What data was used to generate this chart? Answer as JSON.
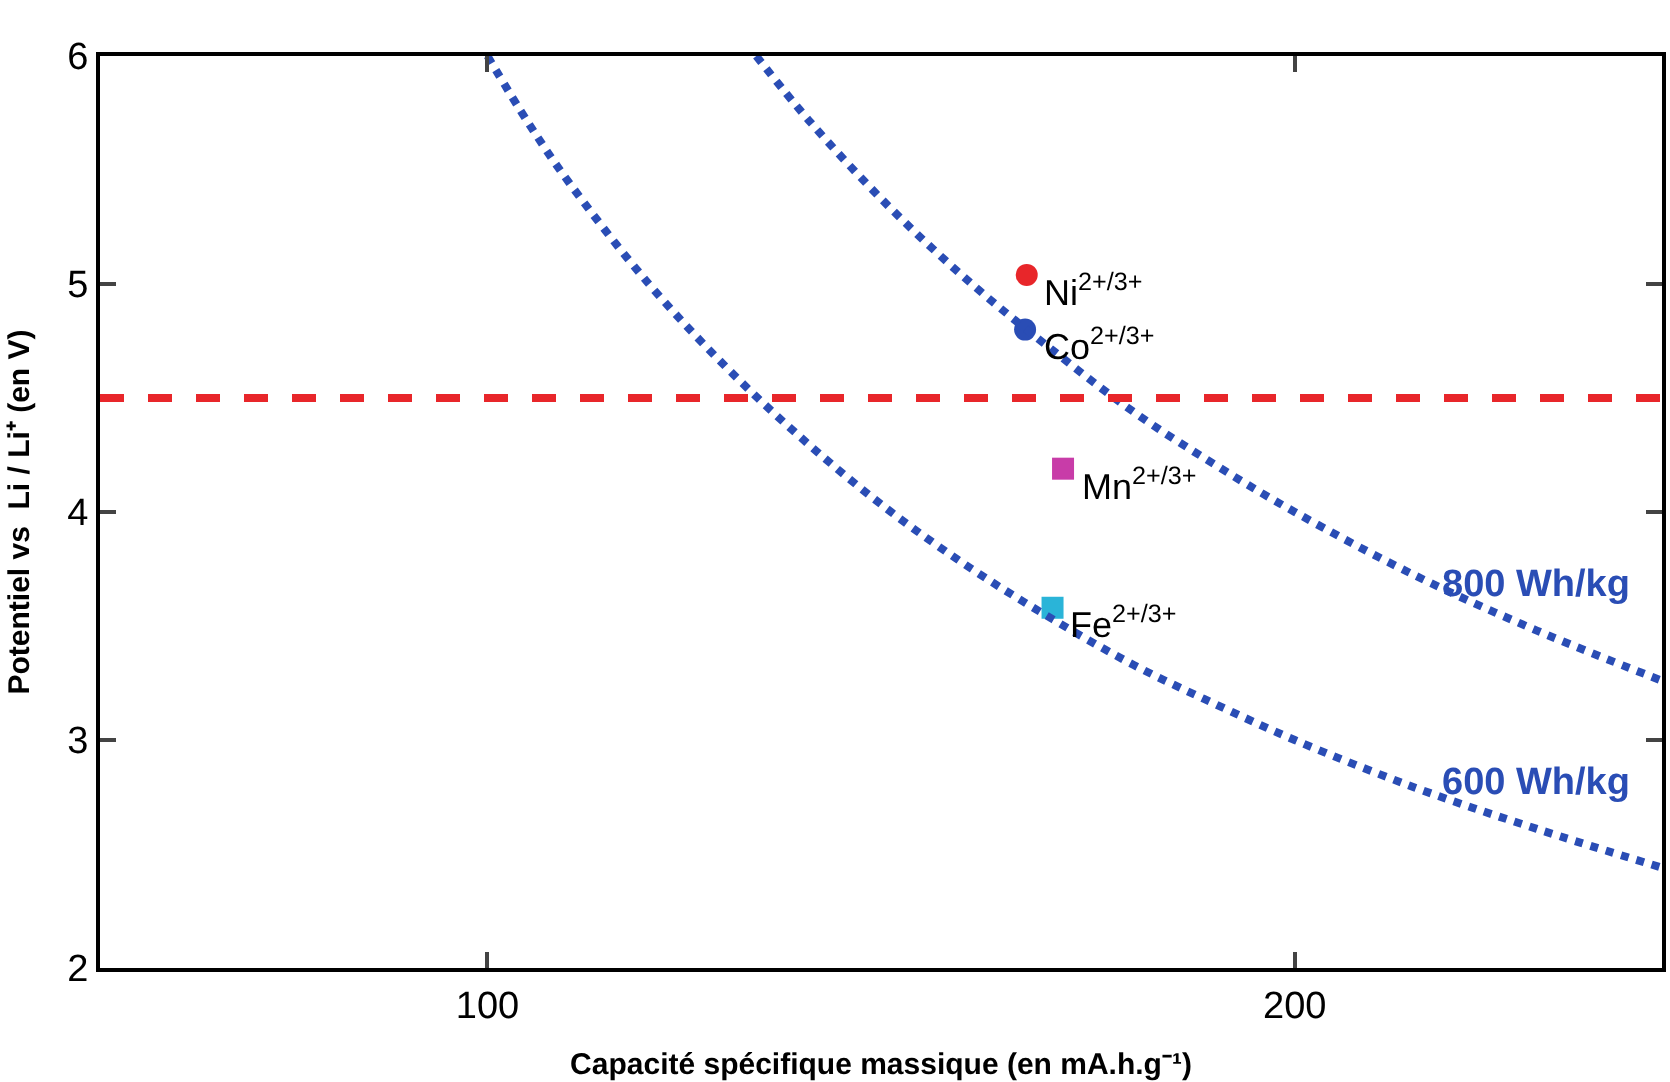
{
  "chart_data": {
    "type": "scatter",
    "xlabel": "Capacité spécifique massique (en mA.h.g⁻¹)",
    "ylabel": "Potentiel vs  Li / Li⁺ (en V)",
    "xlim": [
      52,
      245.5
    ],
    "ylim": [
      2,
      6
    ],
    "xticks": [
      100,
      200
    ],
    "yticks": [
      2,
      3,
      4,
      5,
      6
    ],
    "series": [
      {
        "name": "Ni$^{2+/3+}$",
        "color": "#e8262a",
        "marker": "circle",
        "x": [
          166.8
        ],
        "values": [
          5.04
        ]
      },
      {
        "name": "Co$^{2+/3+}$",
        "color": "#2a4db5",
        "marker": "circle",
        "x": [
          166.6
        ],
        "values": [
          4.8
        ]
      },
      {
        "name": "Mn$^{2+/3+}$",
        "color": "#c83ca8",
        "marker": "square",
        "x": [
          171.3
        ],
        "values": [
          4.19
        ]
      },
      {
        "name": "Fe$^{2+/3+}$",
        "color": "#2ab4d8",
        "marker": "square",
        "x": [
          170
        ],
        "values": [
          3.58
        ]
      },
      {
        "type": "line",
        "name": "600 Wh/kg",
        "color": "#2a4db5",
        "line_style": "dotted",
        "x": [
          100,
          105,
          110,
          120,
          130,
          140,
          150,
          160,
          170,
          180,
          190,
          200,
          215,
          230,
          245.5
        ],
        "values": [
          6,
          5.71,
          5.45,
          5,
          4.62,
          4.29,
          4,
          3.75,
          3.53,
          3.33,
          3.16,
          3,
          2.79,
          2.61,
          2.44
        ]
      },
      {
        "type": "line",
        "name": "800 Wh/kg",
        "color": "#2a4db5",
        "line_style": "dotted",
        "x": [
          133.3,
          140,
          150,
          160,
          170,
          180,
          190,
          200,
          215,
          230,
          245.5
        ],
        "values": [
          6,
          5.71,
          5.33,
          5,
          4.71,
          4.44,
          4.21,
          4,
          3.72,
          3.48,
          3.26
        ]
      }
    ],
    "ref_lines": [
      {
        "axis": "y",
        "value": 4.5,
        "color": "#e8262a",
        "line_style": "dashed"
      }
    ]
  }
}
